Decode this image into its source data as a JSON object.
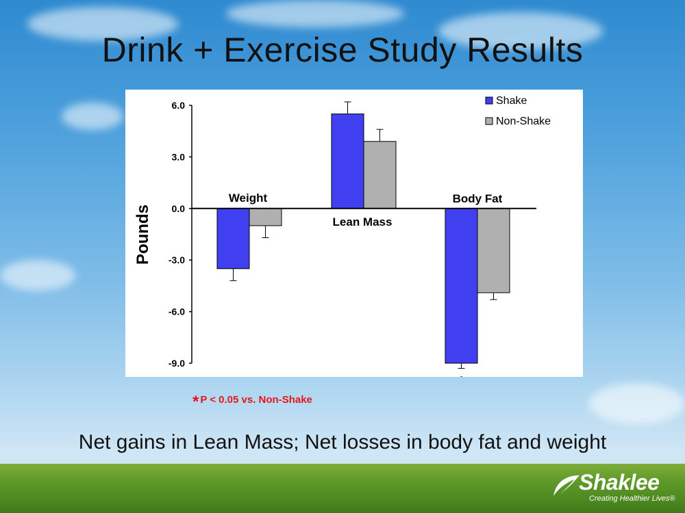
{
  "slide": {
    "title": "Drink + Exercise Study Results",
    "caption": "Net gains in Lean Mass; Net losses in body fat and weight",
    "footnote_star": "*",
    "footnote_text": "P < 0.05 vs. Non-Shake"
  },
  "logo": {
    "name": "Shaklee",
    "tagline": "Creating Healthier Lives®"
  },
  "chart_data": {
    "type": "bar",
    "title": "",
    "xlabel": "",
    "ylabel": "Pounds",
    "ylim": [
      -9.0,
      6.0
    ],
    "yticks": [
      "6.0",
      "3.0",
      "0.0",
      "-3.0",
      "-6.0",
      "-9.0"
    ],
    "ytick_values": [
      6,
      3,
      0,
      -3,
      -6,
      -9
    ],
    "categories": [
      "Weight",
      "Lean Mass",
      "Body Fat"
    ],
    "series": [
      {
        "name": "Shake",
        "values": [
          -3.5,
          5.5,
          -9.0
        ],
        "errors": [
          0.7,
          0.7,
          0.3
        ],
        "color": "#4040f0"
      },
      {
        "name": "Non-Shake",
        "values": [
          -1.0,
          3.9,
          -4.9
        ],
        "errors": [
          0.7,
          0.7,
          0.4
        ],
        "color": "#b0b0b0"
      }
    ],
    "significance": [
      {
        "category": "Body Fat",
        "series": "Shake",
        "marker": "*"
      }
    ],
    "legend_position": "top-right",
    "grid": false
  }
}
